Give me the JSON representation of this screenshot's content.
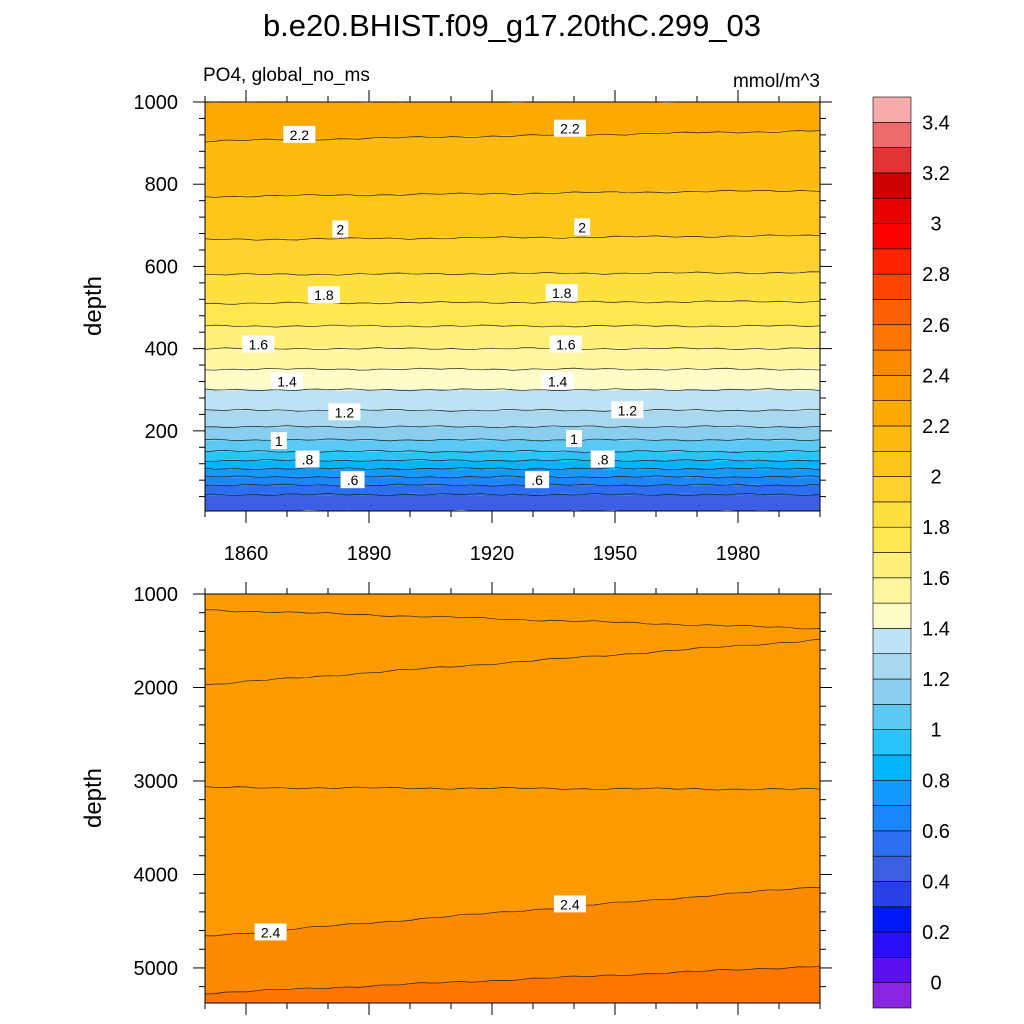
{
  "title": "b.e20.BHIST.f09_g17.20thC.299_03",
  "left_subtitle": "PO4, global_no_ms",
  "right_subtitle": "mmol/m^3",
  "chart_data": [
    {
      "type": "heatmap",
      "panel": "upper",
      "variable": "PO4",
      "units": "mmol/m^3",
      "ylabel": "depth",
      "xlabel": "",
      "xlim": [
        1850,
        2000
      ],
      "ylim": [
        1000,
        5
      ],
      "x_ticks": [
        1860,
        1890,
        1920,
        1950,
        1980
      ],
      "y_ticks": [
        200,
        400,
        600,
        800,
        1000
      ],
      "contour_interval": 0.1,
      "contour_lines": [
        {
          "level": 0.5,
          "depth_start": 45,
          "depth_end": 45
        },
        {
          "level": 0.6,
          "depth_start": 68,
          "depth_end": 68
        },
        {
          "level": 0.7,
          "depth_start": 88,
          "depth_end": 88
        },
        {
          "level": 0.8,
          "depth_start": 108,
          "depth_end": 108
        },
        {
          "level": 0.9,
          "depth_start": 128,
          "depth_end": 128
        },
        {
          "level": 1.0,
          "depth_start": 150,
          "depth_end": 150
        },
        {
          "level": 1.1,
          "depth_start": 178,
          "depth_end": 178
        },
        {
          "level": 1.2,
          "depth_start": 210,
          "depth_end": 210
        },
        {
          "level": 1.3,
          "depth_start": 250,
          "depth_end": 250
        },
        {
          "level": 1.4,
          "depth_start": 300,
          "depth_end": 300
        },
        {
          "level": 1.5,
          "depth_start": 350,
          "depth_end": 350
        },
        {
          "level": 1.6,
          "depth_start": 400,
          "depth_end": 400
        },
        {
          "level": 1.7,
          "depth_start": 455,
          "depth_end": 455
        },
        {
          "level": 1.8,
          "depth_start": 510,
          "depth_end": 515
        },
        {
          "level": 1.9,
          "depth_start": 580,
          "depth_end": 585
        },
        {
          "level": 2.0,
          "depth_start": 665,
          "depth_end": 675
        },
        {
          "level": 2.1,
          "depth_start": 770,
          "depth_end": 785
        },
        {
          "level": 2.2,
          "depth_start": 905,
          "depth_end": 930
        }
      ],
      "contour_labels": [
        {
          "text": ".6",
          "x": 1886,
          "depth": 80
        },
        {
          "text": ".6",
          "x": 1931,
          "depth": 80
        },
        {
          "text": ".8",
          "x": 1875,
          "depth": 130
        },
        {
          "text": ".8",
          "x": 1947,
          "depth": 130
        },
        {
          "text": "1",
          "x": 1868,
          "depth": 175
        },
        {
          "text": "1",
          "x": 1940,
          "depth": 180
        },
        {
          "text": "1.2",
          "x": 1884,
          "depth": 245
        },
        {
          "text": "1.2",
          "x": 1953,
          "depth": 250
        },
        {
          "text": "1.4",
          "x": 1870,
          "depth": 320
        },
        {
          "text": "1.4",
          "x": 1936,
          "depth": 320
        },
        {
          "text": "1.6",
          "x": 1863,
          "depth": 410
        },
        {
          "text": "1.6",
          "x": 1938,
          "depth": 410
        },
        {
          "text": "1.8",
          "x": 1879,
          "depth": 530
        },
        {
          "text": "1.8",
          "x": 1937,
          "depth": 535
        },
        {
          "text": "2",
          "x": 1883,
          "depth": 690
        },
        {
          "text": "2",
          "x": 1942,
          "depth": 695
        },
        {
          "text": "2.2",
          "x": 1873,
          "depth": 920
        },
        {
          "text": "2.2",
          "x": 1939,
          "depth": 935
        }
      ]
    },
    {
      "type": "heatmap",
      "panel": "lower",
      "variable": "PO4",
      "units": "mmol/m^3",
      "ylabel": "depth",
      "xlabel": "",
      "xlim": [
        1850,
        2000
      ],
      "ylim": [
        1000,
        5375
      ],
      "y_ticks": [
        1000,
        2000,
        3000,
        4000,
        5000
      ],
      "contour_interval": 0.1,
      "fill_regions": [
        {
          "value": 2.35,
          "depth_from": 1000,
          "depth_to": 1200
        },
        {
          "value": 2.35,
          "depth_from": 1200,
          "depth_to": 1950
        },
        {
          "value": 2.3,
          "depth_from": 1500,
          "depth_to": 3050
        },
        {
          "value": 2.35,
          "depth_from": 3050,
          "depth_to": 4500
        },
        {
          "value": 2.45,
          "depth_from": 4150,
          "depth_to": 5000
        },
        {
          "value": 2.55,
          "depth_from": 5000,
          "depth_to": 5375
        }
      ],
      "contour_lines": [
        {
          "level": 2.3,
          "depth_start": 1170,
          "depth_end": 1370
        },
        {
          "level": 2.3,
          "depth_start": 1970,
          "depth_end": 1490
        },
        {
          "level": 2.3,
          "depth_start": 3070,
          "depth_end": 3090
        },
        {
          "level": 2.4,
          "depth_start": 4660,
          "depth_end": 4130
        },
        {
          "level": 2.5,
          "depth_start": 5270,
          "depth_end": 4980
        }
      ],
      "contour_labels": [
        {
          "text": "2.4",
          "x": 1866,
          "depth": 4620
        },
        {
          "text": "2.4",
          "x": 1939,
          "depth": 4320
        }
      ]
    }
  ],
  "colorbar": {
    "labels": [
      "3.4",
      "3.2",
      "3",
      "2.8",
      "2.6",
      "2.4",
      "2.2",
      "2",
      "1.8",
      "1.6",
      "1.4",
      "1.2",
      "1",
      "0.8",
      "0.6",
      "0.4",
      "0.2",
      "0"
    ],
    "levels": [
      -0.1,
      0,
      0.1,
      0.2,
      0.3,
      0.4,
      0.5,
      0.6,
      0.7,
      0.8,
      0.9,
      1.0,
      1.1,
      1.2,
      1.3,
      1.4,
      1.5,
      1.6,
      1.7,
      1.8,
      1.9,
      2.0,
      2.1,
      2.2,
      2.3,
      2.4,
      2.5,
      2.6,
      2.7,
      2.8,
      2.9,
      3.0,
      3.1,
      3.2,
      3.3,
      3.4,
      3.5
    ],
    "colors_bottom_to_top": [
      "#8b24e0",
      "#5b10f0",
      "#2a0ef8",
      "#0018f5",
      "#2840e8",
      "#3b5ee3",
      "#2b6ff0",
      "#1a86ff",
      "#1499ff",
      "#00b4ff",
      "#28c4fa",
      "#5cc8f4",
      "#8acdee",
      "#a8d8f0",
      "#bee3f5",
      "#fffdc8",
      "#fff6a0",
      "#fff07a",
      "#fde84f",
      "#fee040",
      "#fed22e",
      "#fec618",
      "#fdbb0f",
      "#fcaa00",
      "#fc9a00",
      "#fc8a00",
      "#fe7600",
      "#fd6000",
      "#ff4400",
      "#ff2400",
      "#ff0000",
      "#e60000",
      "#cd0000",
      "#e03535",
      "#ec6b6b",
      "#f7aaaa"
    ]
  }
}
